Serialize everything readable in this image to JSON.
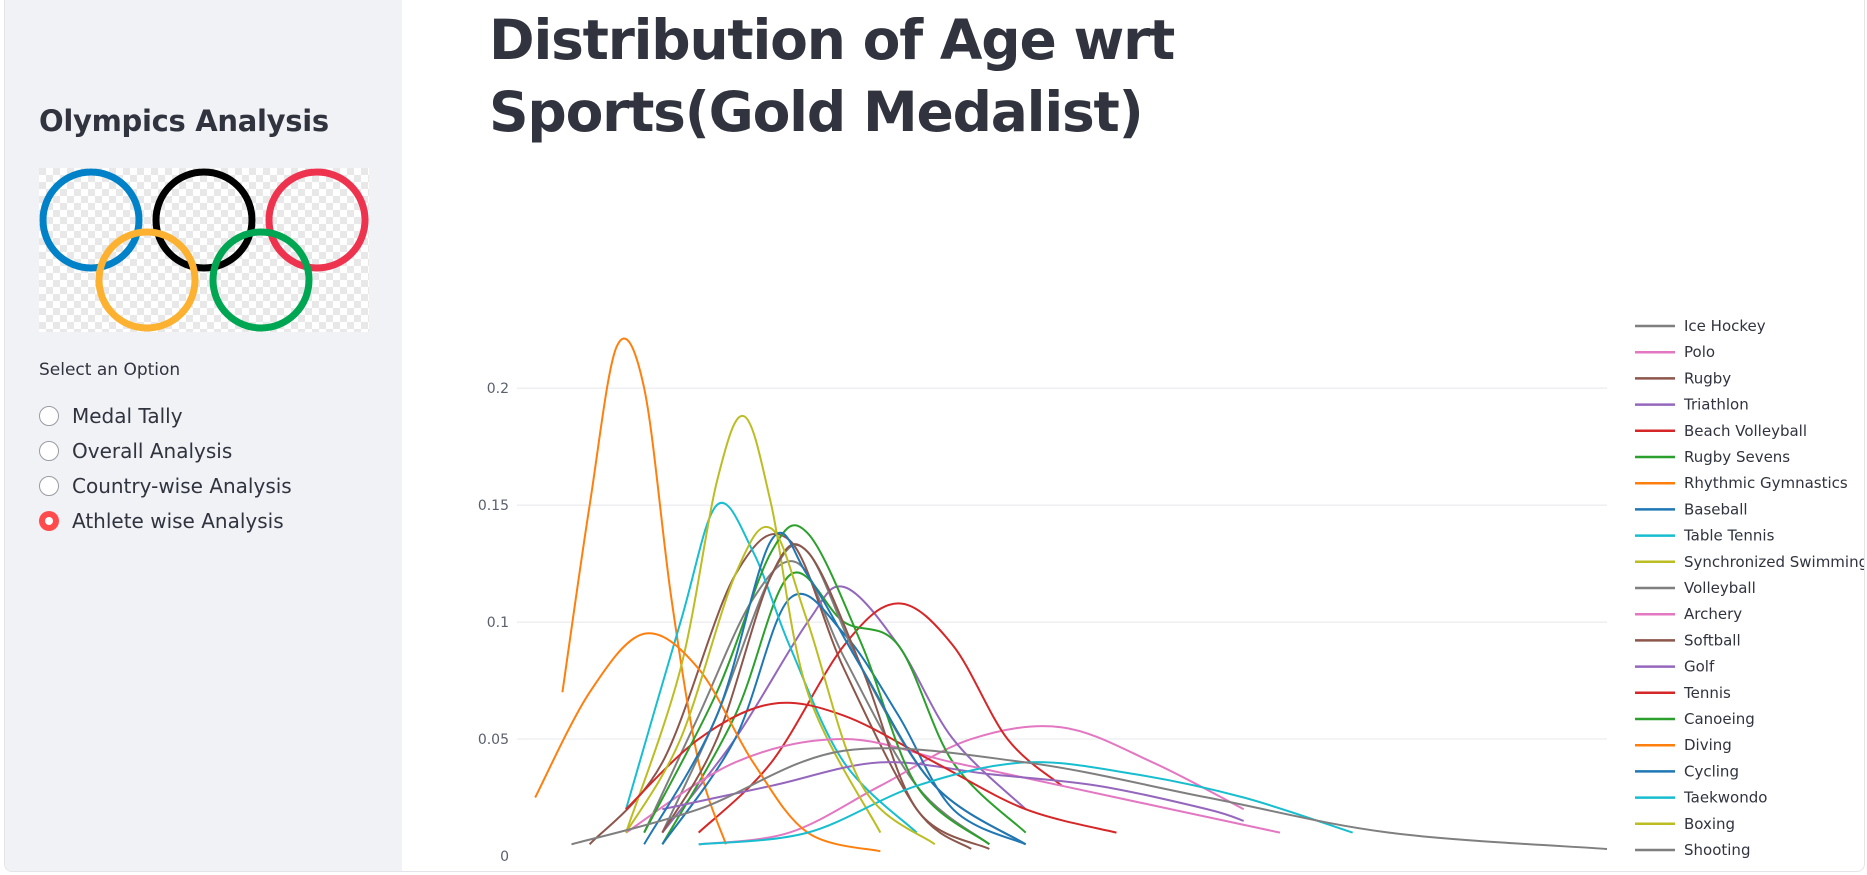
{
  "app": {
    "title": "Distribution of Age wrt Sports(Gold Medalist)"
  },
  "sidebar": {
    "title": "Olympics Analysis",
    "logo_name": "olympic-rings",
    "radio_label": "Select an Option",
    "options": [
      {
        "label": "Medal Tally",
        "selected": false
      },
      {
        "label": "Overall Analysis",
        "selected": false
      },
      {
        "label": "Country-wise Analysis",
        "selected": false
      },
      {
        "label": "Athlete wise Analysis",
        "selected": true
      }
    ],
    "accent_color": "#ff4b4b"
  },
  "chart_data": {
    "type": "line",
    "title": "Distribution of Age wrt Sports(Gold Medalist)",
    "xlabel": "",
    "ylabel": "",
    "ylim": [
      0,
      0.23
    ],
    "xlim": [
      12,
      72
    ],
    "y_ticks": [
      "0",
      "0.05",
      "0.1",
      "0.15",
      "0.2"
    ],
    "grid": true,
    "legend_position": "right",
    "series": [
      {
        "name": "Ice Hockey",
        "color": "#7f7f7f",
        "x": [
          19,
          22,
          25,
          27.5,
          30,
          34,
          38
        ],
        "y": [
          0.01,
          0.06,
          0.11,
          0.125,
          0.085,
          0.03,
          0.005
        ]
      },
      {
        "name": "Polo",
        "color": "#e377c2",
        "x": [
          22,
          27,
          32,
          37,
          42,
          47,
          52
        ],
        "y": [
          0.005,
          0.01,
          0.03,
          0.05,
          0.055,
          0.04,
          0.02
        ]
      },
      {
        "name": "Rugby",
        "color": "#8c564b",
        "x": [
          16,
          20,
          24,
          27,
          30,
          34,
          37
        ],
        "y": [
          0.005,
          0.04,
          0.12,
          0.135,
          0.08,
          0.02,
          0.003
        ]
      },
      {
        "name": "Triathlon",
        "color": "#9467bd",
        "x": [
          20,
          24,
          28,
          30,
          33,
          36,
          40
        ],
        "y": [
          0.01,
          0.05,
          0.1,
          0.115,
          0.09,
          0.05,
          0.02
        ]
      },
      {
        "name": "Beach Volleyball",
        "color": "#d62728",
        "x": [
          22,
          26,
          30,
          33,
          36,
          39,
          42
        ],
        "y": [
          0.01,
          0.04,
          0.09,
          0.108,
          0.09,
          0.05,
          0.03
        ]
      },
      {
        "name": "Rugby Sevens",
        "color": "#2ca02c",
        "x": [
          20,
          24,
          27,
          30,
          33,
          36,
          40
        ],
        "y": [
          0.005,
          0.06,
          0.12,
          0.1,
          0.09,
          0.04,
          0.01
        ]
      },
      {
        "name": "Rhythmic Gymnastics",
        "color": "#ff7f0e",
        "x": [
          14.5,
          16,
          17.5,
          19,
          20.5,
          22,
          23.5
        ],
        "y": [
          0.07,
          0.15,
          0.218,
          0.2,
          0.11,
          0.04,
          0.005
        ]
      },
      {
        "name": "Baseball",
        "color": "#1f77b4",
        "x": [
          20,
          24,
          27,
          30,
          33,
          36,
          40
        ],
        "y": [
          0.005,
          0.05,
          0.11,
          0.095,
          0.06,
          0.02,
          0.005
        ]
      },
      {
        "name": "Table Tennis",
        "color": "#17becf",
        "x": [
          18,
          21,
          23,
          25,
          27,
          30,
          34
        ],
        "y": [
          0.02,
          0.1,
          0.15,
          0.13,
          0.09,
          0.04,
          0.01
        ]
      },
      {
        "name": "Synchronized Swimming",
        "color": "#bcbd22",
        "x": [
          18,
          21,
          23,
          24.5,
          26,
          28,
          32
        ],
        "y": [
          0.01,
          0.08,
          0.16,
          0.188,
          0.15,
          0.07,
          0.01
        ]
      },
      {
        "name": "Volleyball",
        "color": "#7f7f7f",
        "x": [
          20,
          23,
          26,
          28,
          31,
          35,
          40
        ],
        "y": [
          0.01,
          0.06,
          0.12,
          0.13,
          0.08,
          0.03,
          0.005
        ]
      },
      {
        "name": "Archery",
        "color": "#e377c2",
        "x": [
          18,
          24,
          30,
          36,
          42,
          48,
          54
        ],
        "y": [
          0.01,
          0.04,
          0.05,
          0.04,
          0.03,
          0.02,
          0.01
        ]
      },
      {
        "name": "Softball",
        "color": "#8c564b",
        "x": [
          20,
          23,
          26,
          28,
          31,
          34,
          38
        ],
        "y": [
          0.01,
          0.05,
          0.12,
          0.13,
          0.08,
          0.02,
          0.003
        ]
      },
      {
        "name": "Golf",
        "color": "#9467bd",
        "x": [
          20,
          26,
          32,
          38,
          44,
          50,
          52
        ],
        "y": [
          0.02,
          0.03,
          0.04,
          0.035,
          0.03,
          0.02,
          0.015
        ]
      },
      {
        "name": "Tennis",
        "color": "#d62728",
        "x": [
          18,
          22,
          26,
          30,
          35,
          40,
          45
        ],
        "y": [
          0.02,
          0.05,
          0.065,
          0.06,
          0.04,
          0.02,
          0.01
        ]
      },
      {
        "name": "Canoeing",
        "color": "#2ca02c",
        "x": [
          19,
          23,
          26,
          28,
          31,
          34,
          38
        ],
        "y": [
          0.01,
          0.07,
          0.13,
          0.138,
          0.09,
          0.03,
          0.005
        ]
      },
      {
        "name": "Diving",
        "color": "#ff7f0e",
        "x": [
          13,
          16,
          19,
          22,
          25,
          28,
          32
        ],
        "y": [
          0.025,
          0.07,
          0.095,
          0.08,
          0.04,
          0.01,
          0.002
        ]
      },
      {
        "name": "Cycling",
        "color": "#1f77b4",
        "x": [
          19,
          23,
          26,
          28,
          31,
          35,
          40
        ],
        "y": [
          0.005,
          0.06,
          0.135,
          0.12,
          0.08,
          0.03,
          0.005
        ]
      },
      {
        "name": "Taekwondo",
        "color": "#17becf",
        "x": [
          22,
          28,
          34,
          40,
          46,
          52,
          58
        ],
        "y": [
          0.005,
          0.01,
          0.03,
          0.04,
          0.035,
          0.025,
          0.01
        ]
      },
      {
        "name": "Boxing",
        "color": "#bcbd22",
        "x": [
          18,
          21,
          24,
          26,
          28,
          31,
          35
        ],
        "y": [
          0.01,
          0.05,
          0.12,
          0.14,
          0.1,
          0.03,
          0.005
        ]
      },
      {
        "name": "Shooting",
        "color": "#7f7f7f",
        "x": [
          15,
          22,
          30,
          40,
          50,
          60,
          72
        ],
        "y": [
          0.005,
          0.02,
          0.045,
          0.04,
          0.025,
          0.01,
          0.003
        ]
      }
    ]
  }
}
